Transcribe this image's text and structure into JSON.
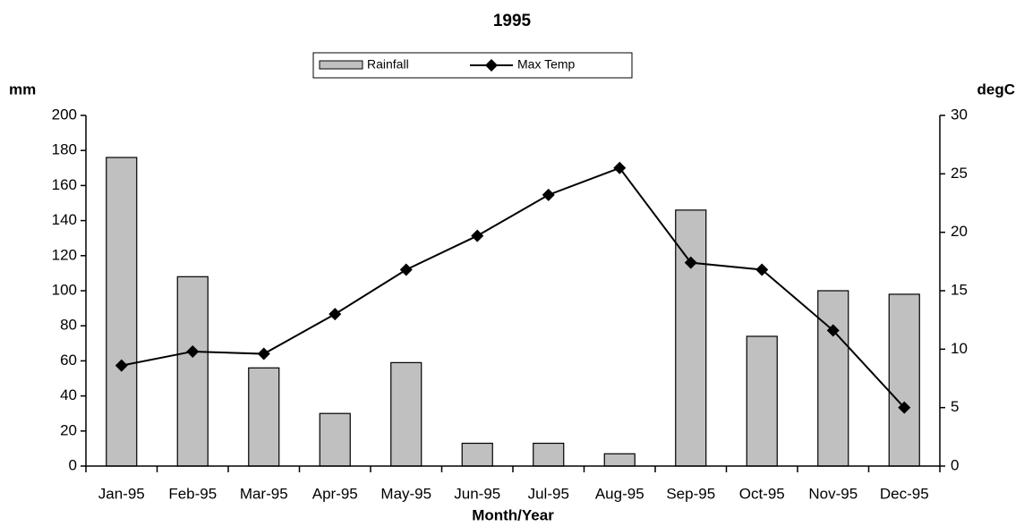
{
  "chart_data": {
    "type": "bar_line",
    "title": "1995",
    "x_label": "Month/Year",
    "y_label": "mm",
    "y2_label": "degC",
    "categories": [
      "Jan-95",
      "Feb-95",
      "Mar-95",
      "Apr-95",
      "May-95",
      "Jun-95",
      "Jul-95",
      "Aug-95",
      "Sep-95",
      "Oct-95",
      "Nov-95",
      "Dec-95"
    ],
    "series": [
      {
        "name": "Rainfall",
        "type": "bar",
        "color": "#c0c0c0",
        "values": [
          176,
          108,
          56,
          30,
          59,
          13,
          13,
          7,
          146,
          74,
          100,
          98
        ]
      },
      {
        "name": "Max Temp",
        "type": "line",
        "axis": "y2",
        "color": "#000000",
        "values": [
          8.6,
          9.8,
          9.6,
          13,
          16.8,
          19.7,
          23.2,
          25.5,
          17.4,
          16.8,
          11.6,
          5.0
        ]
      }
    ],
    "ylim": [
      0,
      200
    ],
    "yticks": [
      0,
      20,
      40,
      60,
      80,
      100,
      120,
      140,
      160,
      180,
      200
    ],
    "y2lim": [
      0,
      30
    ],
    "y2ticks": [
      0,
      5,
      10,
      15,
      20,
      25,
      30
    ],
    "grid": false,
    "legend": "top"
  }
}
